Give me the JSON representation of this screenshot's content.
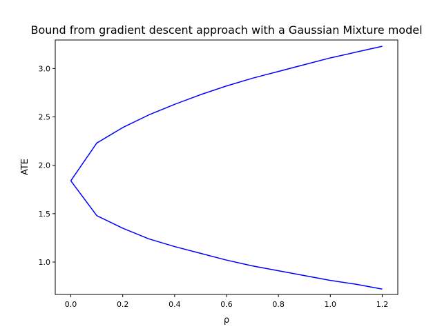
{
  "chart_data": {
    "type": "line",
    "title": "Bound from gradient descent approach with a Gaussian Mixture model",
    "xlabel": "ρ",
    "ylabel": "ATE",
    "xlim": [
      -0.06,
      1.26
    ],
    "ylim": [
      0.665,
      3.295
    ],
    "xticks": [
      0.0,
      0.2,
      0.4,
      0.6,
      0.8,
      1.0,
      1.2
    ],
    "xtick_labels": [
      "0.0",
      "0.2",
      "0.4",
      "0.6",
      "0.8",
      "1.0",
      "1.2"
    ],
    "yticks": [
      1.0,
      1.5,
      2.0,
      2.5,
      3.0
    ],
    "ytick_labels": [
      "1.0",
      "1.5",
      "2.0",
      "2.5",
      "3.0"
    ],
    "grid": false,
    "legend": "none",
    "color": "#0000ff",
    "series": [
      {
        "x": [
          0.0,
          0.1,
          0.2,
          0.3,
          0.4,
          0.5,
          0.6,
          0.7,
          0.8,
          0.9,
          1.0,
          1.1,
          1.2
        ],
        "values": [
          1.84,
          2.23,
          2.39,
          2.52,
          2.63,
          2.73,
          2.82,
          2.9,
          2.97,
          3.04,
          3.11,
          3.17,
          3.23
        ]
      },
      {
        "x": [
          0.0,
          0.1,
          0.2,
          0.3,
          0.4,
          0.5,
          0.6,
          0.7,
          0.8,
          0.9,
          1.0,
          1.1,
          1.2
        ],
        "values": [
          1.84,
          1.48,
          1.35,
          1.24,
          1.16,
          1.09,
          1.02,
          0.96,
          0.91,
          0.86,
          0.81,
          0.77,
          0.72
        ]
      }
    ]
  }
}
